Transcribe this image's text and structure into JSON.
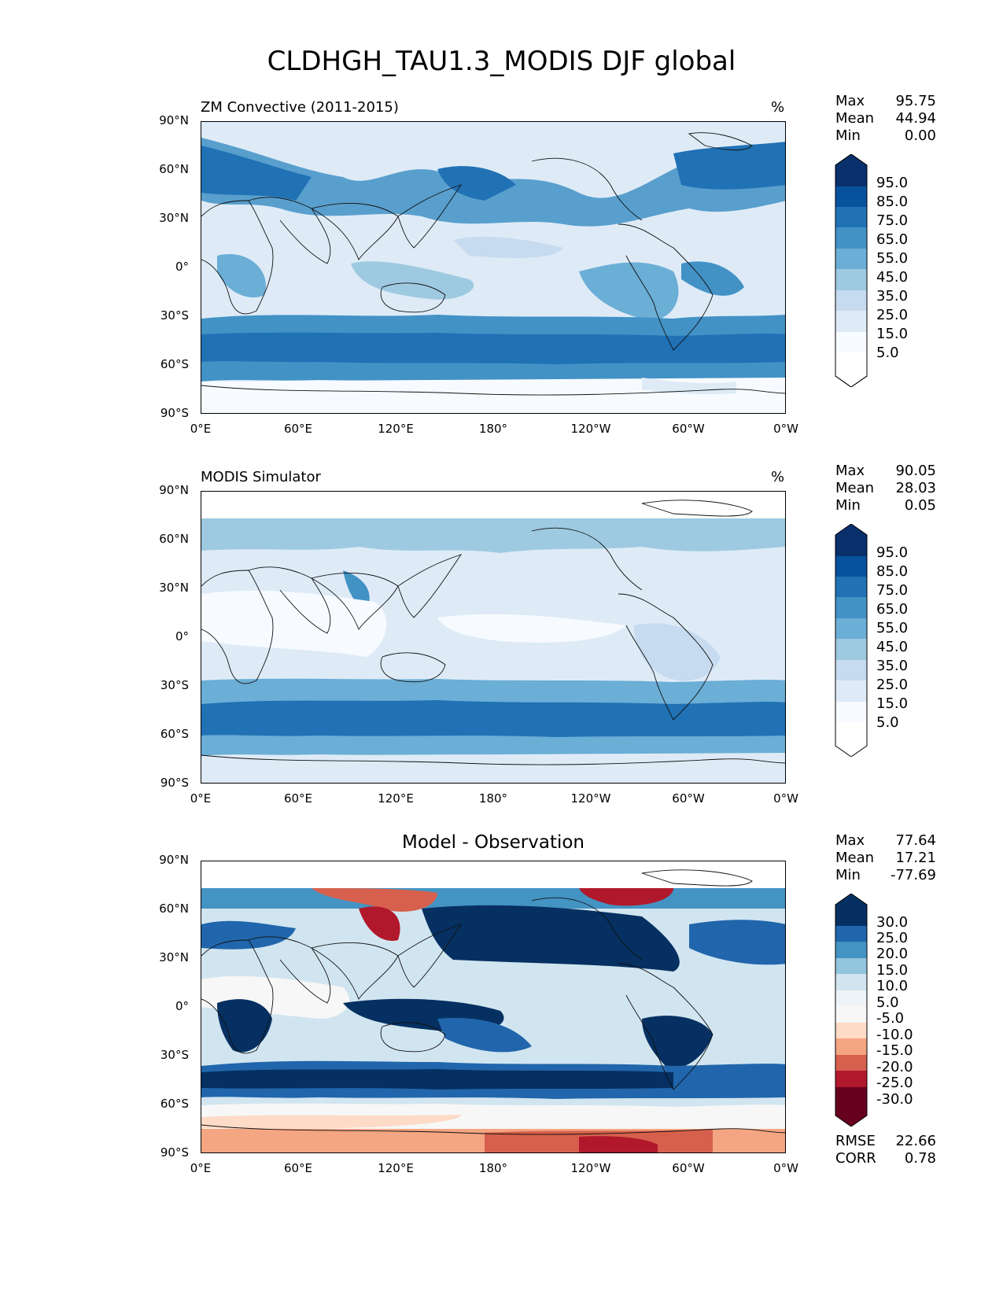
{
  "figure": {
    "title": "CLDHGH_TAU1.3_MODIS DJF global"
  },
  "axes": {
    "lat_ticks": [
      "90°N",
      "60°N",
      "30°N",
      "0°",
      "30°S",
      "60°S",
      "90°S"
    ],
    "lon_ticks": [
      "0°E",
      "60°E",
      "120°E",
      "180°",
      "120°W",
      "60°W",
      "0°W"
    ]
  },
  "panels": [
    {
      "title_left": "ZM Convective (2011-2015)",
      "title_center": "",
      "units": "%",
      "stats": [
        {
          "k": "Max",
          "v": "95.75"
        },
        {
          "k": "Mean",
          "v": "44.94"
        },
        {
          "k": "Min",
          "v": "0.00"
        }
      ],
      "colorbar_labels": [
        "95.0",
        "85.0",
        "75.0",
        "65.0",
        "55.0",
        "45.0",
        "35.0",
        "25.0",
        "15.0",
        "5.0"
      ],
      "colors": [
        "#08306b",
        "#08519c",
        "#2171b5",
        "#4292c6",
        "#6baed6",
        "#9ecae1",
        "#c6dbef",
        "#deebf7",
        "#f7fbff"
      ]
    },
    {
      "title_left": "MODIS Simulator",
      "title_center": "",
      "units": "%",
      "stats": [
        {
          "k": "Max",
          "v": "90.05"
        },
        {
          "k": "Mean",
          "v": "28.03"
        },
        {
          "k": "Min",
          "v": "0.05"
        }
      ],
      "colorbar_labels": [
        "95.0",
        "85.0",
        "75.0",
        "65.0",
        "55.0",
        "45.0",
        "35.0",
        "25.0",
        "15.0",
        "5.0"
      ],
      "colors": [
        "#08306b",
        "#08519c",
        "#2171b5",
        "#4292c6",
        "#6baed6",
        "#9ecae1",
        "#c6dbef",
        "#deebf7",
        "#f7fbff"
      ]
    },
    {
      "title_left": "",
      "title_center": "Model - Observation",
      "units": "",
      "stats": [
        {
          "k": "Max",
          "v": "77.64"
        },
        {
          "k": "Mean",
          "v": "17.21"
        },
        {
          "k": "Min",
          "v": "-77.69"
        }
      ],
      "colorbar_labels": [
        "30.0",
        "25.0",
        "20.0",
        "15.0",
        "10.0",
        "5.0",
        "-5.0",
        "-10.0",
        "-15.0",
        "-20.0",
        "-25.0",
        "-30.0"
      ],
      "colors": [
        "#053061",
        "#2166ac",
        "#4393c3",
        "#92c5de",
        "#d1e5f0",
        "#f7f7f7",
        "#fddbc7",
        "#f4a582",
        "#d6604d",
        "#b2182b",
        "#67001f"
      ],
      "stats_extra": [
        {
          "k": "RMSE",
          "v": "22.66"
        },
        {
          "k": "CORR",
          "v": "0.78"
        }
      ]
    }
  ]
}
